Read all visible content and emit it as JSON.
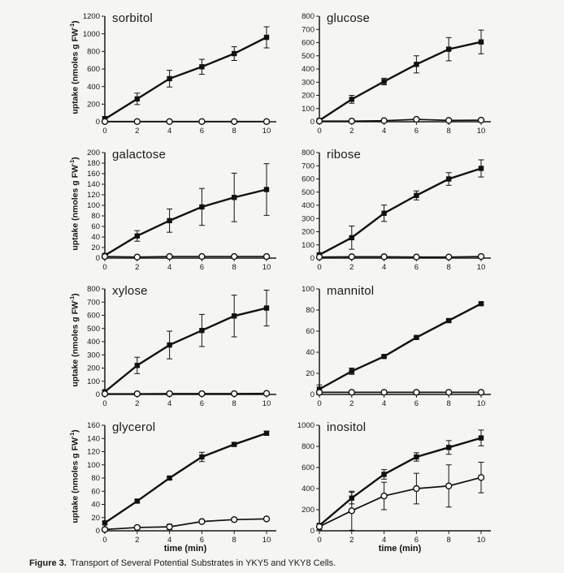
{
  "page": {
    "background": "#f5f5f2"
  },
  "caption": {
    "label": "Figure 3.",
    "text": "Transport of Several Potential Substrates in YKY5 and YKY8 Cells."
  },
  "axis": {
    "ylabel_pre": "uptake (nmoles g FW",
    "ylabel_sup": "-1",
    "ylabel_post": ")",
    "xlabel": "time (min)",
    "x_ticks": [
      0,
      2,
      4,
      6,
      8,
      10
    ]
  },
  "colors": {
    "series": "#111111",
    "axis": "#1a1a1a",
    "circle_fill": "#ffffff"
  },
  "chart_data": [
    {
      "type": "line",
      "title": "sorbitol",
      "xlabel": "time (min)",
      "ylabel": "uptake (nmoles g FW-1)",
      "x": [
        0,
        2,
        4,
        6,
        8,
        10
      ],
      "ylim": [
        0,
        1200
      ],
      "ytick_step": 200,
      "legend": "none",
      "series": [
        {
          "name": "YKY5",
          "marker": "filled-square",
          "values": [
            30,
            260,
            490,
            625,
            775,
            960
          ],
          "err": [
            30,
            65,
            95,
            85,
            78,
            120
          ]
        },
        {
          "name": "YKY8",
          "marker": "open-circle",
          "values": [
            2,
            2,
            2,
            2,
            2,
            2
          ],
          "err": [
            0,
            0,
            0,
            0,
            0,
            0
          ]
        }
      ]
    },
    {
      "type": "line",
      "title": "glucose",
      "xlabel": "time (min)",
      "ylabel": "uptake (nmoles g FW-1)",
      "x": [
        0,
        2,
        4,
        6,
        8,
        10
      ],
      "ylim": [
        0,
        800
      ],
      "ytick_step": 100,
      "legend": "none",
      "series": [
        {
          "name": "YKY5",
          "marker": "filled-square",
          "values": [
            10,
            170,
            305,
            435,
            550,
            605
          ],
          "err": [
            10,
            30,
            25,
            65,
            88,
            90
          ]
        },
        {
          "name": "YKY8",
          "marker": "open-circle",
          "values": [
            5,
            5,
            8,
            18,
            10,
            12
          ],
          "err": [
            3,
            3,
            3,
            5,
            3,
            3
          ]
        }
      ]
    },
    {
      "type": "line",
      "title": "galactose",
      "xlabel": "time (min)",
      "ylabel": "uptake (nmoles g FW-1)",
      "x": [
        0,
        2,
        4,
        6,
        8,
        10
      ],
      "ylim": [
        0,
        200
      ],
      "ytick_step": 20,
      "legend": "none",
      "series": [
        {
          "name": "YKY5",
          "marker": "filled-square",
          "values": [
            5,
            42,
            71,
            97,
            115,
            130
          ],
          "err": [
            3,
            10,
            22,
            35,
            46,
            49
          ]
        },
        {
          "name": "YKY8",
          "marker": "open-circle",
          "values": [
            3,
            2,
            3,
            3,
            3,
            3
          ],
          "err": [
            1,
            1,
            1,
            1,
            1,
            1
          ]
        }
      ]
    },
    {
      "type": "line",
      "title": "ribose",
      "xlabel": "time (min)",
      "ylabel": "uptake (nmoles g FW-1)",
      "x": [
        0,
        2,
        4,
        6,
        8,
        10
      ],
      "ylim": [
        0,
        800
      ],
      "ytick_step": 100,
      "legend": "none",
      "series": [
        {
          "name": "YKY5",
          "marker": "filled-square",
          "values": [
            25,
            155,
            340,
            475,
            600,
            680
          ],
          "err": [
            12,
            88,
            62,
            34,
            48,
            65
          ]
        },
        {
          "name": "YKY8",
          "marker": "open-circle",
          "values": [
            8,
            10,
            10,
            8,
            8,
            12
          ],
          "err": [
            3,
            3,
            3,
            3,
            3,
            3
          ]
        }
      ]
    },
    {
      "type": "line",
      "title": "xylose",
      "xlabel": "time (min)",
      "ylabel": "uptake (nmoles g FW-1)",
      "x": [
        0,
        2,
        4,
        6,
        8,
        10
      ],
      "ylim": [
        0,
        800
      ],
      "ytick_step": 100,
      "legend": "none",
      "series": [
        {
          "name": "YKY5",
          "marker": "filled-square",
          "values": [
            20,
            220,
            375,
            485,
            595,
            655
          ],
          "err": [
            10,
            62,
            105,
            122,
            158,
            136
          ]
        },
        {
          "name": "YKY8",
          "marker": "open-circle",
          "values": [
            5,
            5,
            6,
            6,
            6,
            8
          ],
          "err": [
            3,
            3,
            3,
            3,
            3,
            3
          ]
        }
      ]
    },
    {
      "type": "line",
      "title": "mannitol",
      "xlabel": "time (min)",
      "ylabel": "uptake (nmoles g FW-1)",
      "x": [
        0,
        2,
        4,
        6,
        8,
        10
      ],
      "ylim": [
        0,
        100
      ],
      "ytick_step": 20,
      "legend": "none",
      "series": [
        {
          "name": "YKY5",
          "marker": "filled-square",
          "values": [
            5,
            22,
            36,
            54,
            70,
            86
          ],
          "err": [
            4,
            3,
            1,
            1,
            1,
            1
          ]
        },
        {
          "name": "YKY8",
          "marker": "open-circle",
          "values": [
            2,
            2,
            2,
            2,
            2,
            2
          ],
          "err": [
            1,
            1,
            1,
            1,
            1,
            1
          ]
        }
      ]
    },
    {
      "type": "line",
      "title": "glycerol",
      "xlabel": "time (min)",
      "ylabel": "uptake (nmoles g FW-1)",
      "x": [
        0,
        2,
        4,
        6,
        8,
        10
      ],
      "ylim": [
        0,
        160
      ],
      "ytick_step": 20,
      "legend": "none",
      "series": [
        {
          "name": "YKY5",
          "marker": "filled-square",
          "values": [
            12,
            45,
            80,
            112,
            131,
            148
          ],
          "err": [
            2,
            2,
            2,
            7,
            3,
            3
          ]
        },
        {
          "name": "YKY8",
          "marker": "open-circle",
          "values": [
            2,
            5,
            6,
            14,
            17,
            18
          ],
          "err": [
            1,
            1,
            4,
            2,
            2,
            2
          ]
        }
      ]
    },
    {
      "type": "line",
      "title": "inositol",
      "xlabel": "time (min)",
      "ylabel": "uptake (nmoles g FW-1)",
      "x": [
        0,
        2,
        4,
        6,
        8,
        10
      ],
      "ylim": [
        0,
        1000
      ],
      "ytick_step": 200,
      "legend": "none",
      "series": [
        {
          "name": "YKY5",
          "marker": "filled-square",
          "values": [
            50,
            310,
            535,
            700,
            790,
            880
          ],
          "err": [
            20,
            55,
            45,
            40,
            65,
            75
          ]
        },
        {
          "name": "YKY8",
          "marker": "open-circle",
          "values": [
            40,
            190,
            330,
            400,
            425,
            505
          ],
          "err": [
            30,
            185,
            130,
            145,
            200,
            145
          ]
        }
      ]
    }
  ]
}
